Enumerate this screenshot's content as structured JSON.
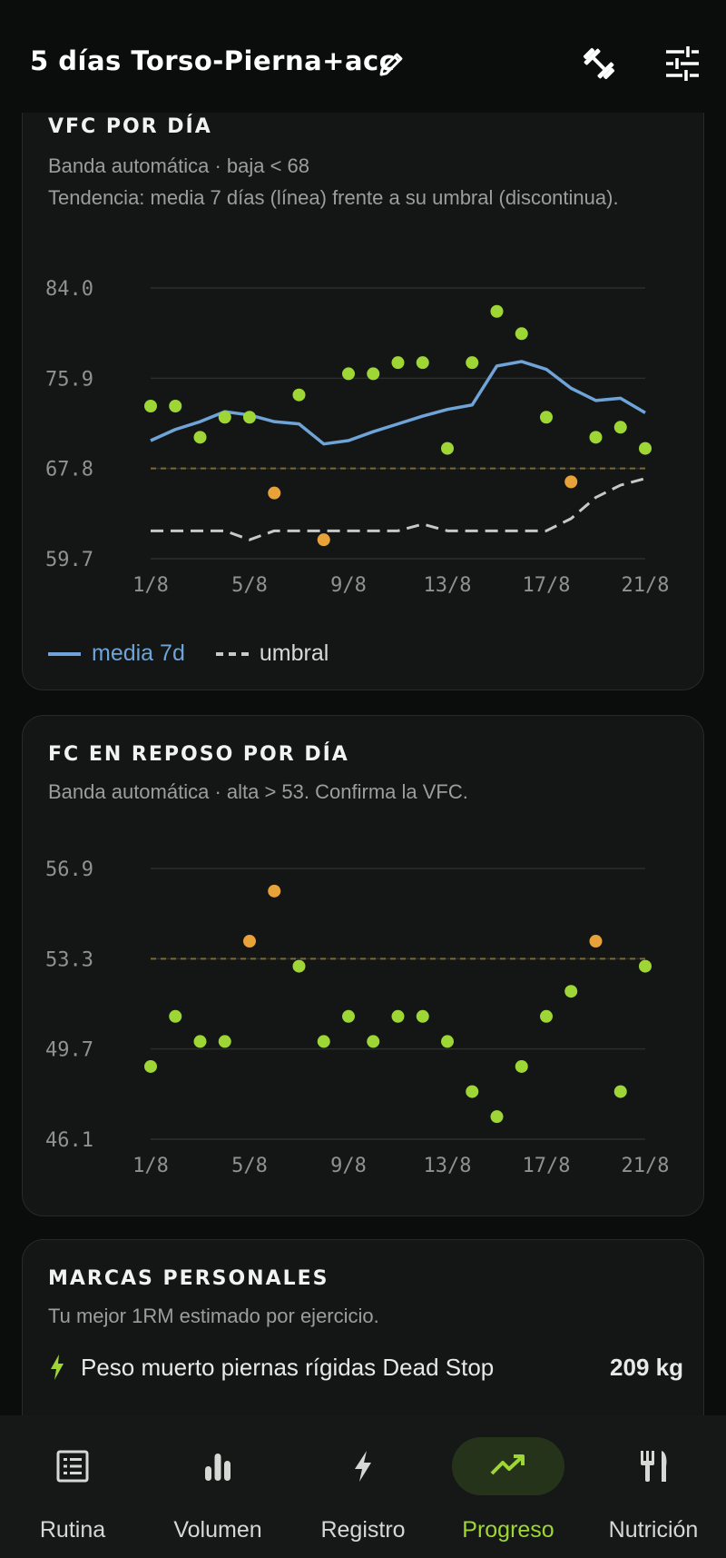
{
  "header": {
    "title": "5 días Torso-Pierna+acc"
  },
  "colors": {
    "accent": "#9ed635",
    "warning": "#e8a23a",
    "line": "#6ea4d8",
    "threshold": "#c8c8c8",
    "band": "#7a6a2e"
  },
  "hrv_card": {
    "title": "VFC POR DÍA",
    "subtitle": "Banda automática · baja < 68",
    "subtitle2": "Tendencia: media 7 días (línea) frente a su umbral (discontinua).",
    "legend_line": "media 7d",
    "legend_dash": "umbral"
  },
  "rhr_card": {
    "title": "FC EN REPOSO POR DÍA",
    "subtitle": "Banda automática · alta > 53. Confirma la VFC."
  },
  "pr_card": {
    "title": "MARCAS PERSONALES",
    "subtitle": "Tu mejor 1RM estimado por ejercicio.",
    "items": [
      {
        "name": "Peso muerto piernas rígidas Dead Stop",
        "value": "209 kg",
        "icon": "bolt-icon"
      }
    ]
  },
  "chart_data": [
    {
      "type": "scatter",
      "title": "VFC POR DÍA",
      "x": [
        "1/8",
        "2/8",
        "3/8",
        "4/8",
        "5/8",
        "6/8",
        "7/8",
        "8/8",
        "9/8",
        "10/8",
        "11/8",
        "12/8",
        "13/8",
        "14/8",
        "15/8",
        "16/8",
        "17/8",
        "18/8",
        "19/8",
        "20/8",
        "21/8"
      ],
      "xticks": [
        "1/8",
        "5/8",
        "9/8",
        "13/8",
        "17/8",
        "21/8"
      ],
      "yticks": [
        "84.0",
        "75.9",
        "67.8",
        "59.7"
      ],
      "ylim": [
        59.7,
        84.0
      ],
      "band_threshold": 67.8,
      "band_direction": "low",
      "series": [
        {
          "name": "",
          "kind": "points",
          "values": [
            73.4,
            73.4,
            70.6,
            72.4,
            72.4,
            65.6,
            74.4,
            61.4,
            76.3,
            76.3,
            77.3,
            77.3,
            69.6,
            77.3,
            81.9,
            79.9,
            72.4,
            66.6,
            70.6,
            71.5,
            69.6
          ]
        },
        {
          "name": "media 7d",
          "kind": "line",
          "values": [
            70.3,
            71.3,
            72.0,
            72.9,
            72.6,
            72.0,
            71.8,
            70.0,
            70.3,
            71.1,
            71.8,
            72.5,
            73.1,
            73.5,
            77.0,
            77.4,
            76.7,
            75.0,
            73.9,
            74.1,
            72.8
          ]
        },
        {
          "name": "umbral",
          "kind": "dashed",
          "values": [
            62.2,
            62.2,
            62.2,
            62.2,
            61.4,
            62.2,
            62.2,
            62.2,
            62.2,
            62.2,
            62.2,
            62.8,
            62.2,
            62.2,
            62.2,
            62.2,
            62.2,
            63.3,
            65.2,
            66.3,
            66.9
          ]
        }
      ]
    },
    {
      "type": "scatter",
      "title": "FC EN REPOSO POR DÍA",
      "x": [
        "1/8",
        "2/8",
        "3/8",
        "4/8",
        "5/8",
        "6/8",
        "7/8",
        "8/8",
        "9/8",
        "10/8",
        "11/8",
        "12/8",
        "13/8",
        "14/8",
        "15/8",
        "16/8",
        "17/8",
        "18/8",
        "19/8",
        "20/8",
        "21/8"
      ],
      "xticks": [
        "1/8",
        "5/8",
        "9/8",
        "13/8",
        "17/8",
        "21/8"
      ],
      "yticks": [
        "56.9",
        "53.3",
        "49.7",
        "46.1"
      ],
      "ylim": [
        46.1,
        56.9
      ],
      "band_threshold": 53.3,
      "band_direction": "high",
      "series": [
        {
          "name": "",
          "kind": "points",
          "values": [
            49.0,
            51.0,
            50.0,
            50.0,
            54.0,
            56.0,
            53.0,
            50.0,
            51.0,
            50.0,
            51.0,
            51.0,
            50.0,
            48.0,
            47.0,
            49.0,
            51.0,
            52.0,
            54.0,
            48.0,
            53.0
          ]
        }
      ]
    }
  ],
  "nav": {
    "items": [
      {
        "label": "Rutina",
        "icon": "list-icon"
      },
      {
        "label": "Volumen",
        "icon": "bar-chart-icon"
      },
      {
        "label": "Registro",
        "icon": "bolt-icon"
      },
      {
        "label": "Progreso",
        "icon": "trending-up-icon"
      },
      {
        "label": "Nutrición",
        "icon": "fork-knife-icon"
      }
    ],
    "active": "Progreso"
  }
}
